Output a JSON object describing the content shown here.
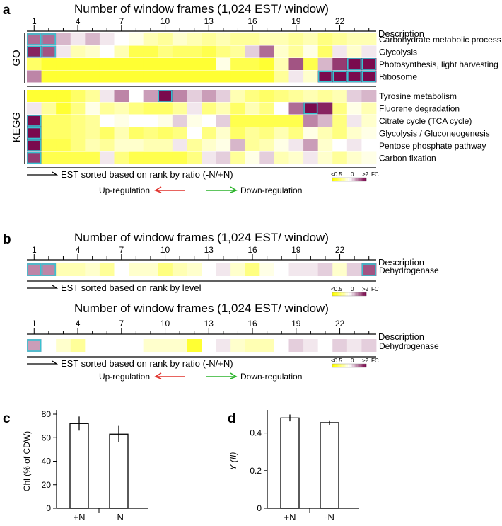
{
  "panels": [
    {
      "letter": "a"
    },
    {
      "letter": "b"
    },
    {
      "letter": "c"
    },
    {
      "letter": "d"
    }
  ],
  "heatmap_title": "Number of window frames (1,024 EST/ window)",
  "description_label": "Description",
  "tick_labels": [
    "1",
    "4",
    "7",
    "10",
    "13",
    "16",
    "19",
    "22"
  ],
  "legend": {
    "low": "<0.5",
    "mid": "0",
    "high": ">2",
    "unit": "FC"
  },
  "regulation": {
    "up": "Up-regulation",
    "down": "Down-regulation"
  },
  "colors": {
    "yellow": "#ffff00",
    "white": "#ffffff",
    "magenta": "#7a0a4e",
    "highlight": "#38c2d0",
    "up_arrow": "#e0302a",
    "down_arrow": "#2bb32b"
  },
  "chart_data": [
    {
      "type": "heatmap",
      "panel": "a",
      "title": "Number of window frames (1,024 EST/ window)",
      "x_ticks": [
        1,
        4,
        7,
        10,
        13,
        16,
        19,
        22
      ],
      "n_columns": 24,
      "value_scale": "fold change, -1 = <0.5 (yellow), 0 = 0 (white), +1 = >2 (dark magenta)",
      "sort_caption": "EST sorted based on rank by ratio (-N/+N)",
      "groups": [
        {
          "name": "GO",
          "rows": [
            {
              "label": "Carbohydrate metabolic process",
              "values": [
                0.6,
                0.6,
                0.3,
                0.1,
                0.3,
                0.1,
                0.0,
                -0.1,
                -0.3,
                -0.4,
                -0.2,
                -0.3,
                -0.4,
                -0.3,
                -0.4,
                -0.4,
                -0.3,
                -0.3,
                -0.4,
                -0.3,
                -0.5,
                -0.4,
                -0.3,
                -0.3
              ]
            },
            {
              "label": "Glycolysis",
              "values": [
                0.9,
                0.7,
                0.1,
                -0.3,
                -0.2,
                0.0,
                -0.3,
                -0.7,
                -0.7,
                -0.5,
                -0.6,
                -0.6,
                -0.7,
                -0.5,
                -0.4,
                0.2,
                0.6,
                -0.2,
                -0.4,
                -0.1,
                -0.6,
                0.1,
                -0.2,
                0.1
              ]
            },
            {
              "label": "Photosynthesis, light harvesting",
              "values": [
                -0.6,
                -0.8,
                -0.8,
                -0.8,
                -0.8,
                -0.8,
                -0.8,
                -0.8,
                -0.8,
                -0.8,
                -0.8,
                -0.8,
                -0.8,
                -0.1,
                -0.7,
                -0.7,
                -0.8,
                -0.3,
                0.7,
                -0.7,
                0.3,
                0.8,
                1.0,
                1.0
              ]
            },
            {
              "label": "Ribosome",
              "values": [
                0.5,
                -0.8,
                -0.8,
                -0.8,
                -0.8,
                -0.8,
                -0.8,
                -0.8,
                -0.8,
                -0.8,
                -0.8,
                -0.8,
                -0.8,
                -0.8,
                -0.8,
                -0.8,
                -0.8,
                -0.4,
                0.1,
                -0.2,
                1.0,
                1.0,
                1.0,
                1.0
              ]
            }
          ]
        },
        {
          "name": "KEGG",
          "rows": [
            {
              "label": "Tyrosine metabolism",
              "values": [
                -0.8,
                -0.8,
                -0.8,
                -0.6,
                -0.4,
                0.1,
                0.5,
                0.0,
                0.4,
                1.0,
                0.5,
                0.2,
                0.4,
                0.2,
                -0.3,
                -0.5,
                -0.6,
                -0.5,
                -0.4,
                -0.3,
                -0.4,
                -0.3,
                0.2,
                0.3
              ]
            },
            {
              "label": "Fluorene degradation",
              "values": [
                0.1,
                -0.4,
                -0.8,
                -0.5,
                -0.1,
                -0.4,
                -0.3,
                -0.5,
                -0.6,
                -0.6,
                -0.4,
                0.1,
                -0.5,
                -0.3,
                -0.6,
                -0.3,
                -0.5,
                0.0,
                0.6,
                1.0,
                0.9,
                -0.5,
                -0.1,
                -0.3
              ]
            },
            {
              "label": "Citrate cycle (TCA cycle)",
              "values": [
                1.0,
                -0.6,
                -0.6,
                -0.5,
                -0.4,
                0.0,
                -0.1,
                0.0,
                0.0,
                -0.1,
                0.2,
                -0.1,
                0.0,
                0.2,
                -0.7,
                -0.7,
                -0.7,
                -0.7,
                -0.7,
                0.5,
                0.3,
                -0.5,
                0.1,
                -0.2
              ]
            },
            {
              "label": "Glycolysis / Gluconeogenesis",
              "values": [
                1.0,
                -0.6,
                -0.6,
                -0.5,
                -0.4,
                -0.6,
                -0.3,
                -0.6,
                -0.5,
                -0.6,
                -0.5,
                0.0,
                -0.5,
                -0.2,
                -0.6,
                -0.4,
                -0.5,
                -0.3,
                -0.5,
                -0.1,
                -0.3,
                -0.5,
                -0.2,
                -0.1
              ]
            },
            {
              "label": "Pentose phosphate pathway",
              "values": [
                1.0,
                -0.7,
                -0.7,
                -0.5,
                -0.3,
                -0.4,
                -0.2,
                -0.2,
                -0.3,
                -0.3,
                0.1,
                -0.4,
                -0.2,
                -0.1,
                0.3,
                -0.4,
                -0.3,
                -0.1,
                0.1,
                0.4,
                -0.2,
                0.0,
                0.1,
                0.0
              ]
            },
            {
              "label": "Carbon fixation",
              "values": [
                0.8,
                -0.7,
                -0.7,
                -0.7,
                -0.7,
                0.1,
                -0.5,
                -0.7,
                -0.7,
                -0.7,
                -0.7,
                -0.5,
                0.1,
                0.2,
                -0.4,
                -0.1,
                0.2,
                -0.3,
                -0.2,
                0.1,
                -0.2,
                -0.4,
                -0.2,
                -0.1
              ]
            }
          ]
        }
      ],
      "highlighted_cells": [
        {
          "row": "Carbohydrate metabolic process",
          "columns": [
            1,
            2
          ]
        },
        {
          "row": "Glycolysis",
          "columns": [
            1,
            2
          ]
        },
        {
          "row": "Photosynthesis, light harvesting",
          "columns": [
            23,
            24
          ]
        },
        {
          "row": "Ribosome",
          "columns": [
            21,
            22,
            23,
            24
          ]
        },
        {
          "row": "Tyrosine metabolism",
          "columns": [
            10
          ]
        },
        {
          "row": "Fluorene degradation",
          "columns": [
            20
          ]
        },
        {
          "row": "Citrate cycle (TCA cycle)",
          "columns": [
            1
          ]
        },
        {
          "row": "Glycolysis / Gluconeogenesis",
          "columns": [
            1
          ]
        },
        {
          "row": "Pentose phosphate pathway",
          "columns": [
            1
          ]
        },
        {
          "row": "Carbon fixation",
          "columns": [
            1
          ]
        }
      ]
    },
    {
      "type": "heatmap",
      "panel": "b-top",
      "title": "Number of window frames (1,024 EST/ window)",
      "x_ticks": [
        1,
        4,
        7,
        10,
        13,
        16,
        19,
        22
      ],
      "n_columns": 24,
      "sort_caption": "EST sorted based on rank by level",
      "rows": [
        {
          "label": "Dehydrogenase",
          "values": [
            0.5,
            0.5,
            -0.3,
            -0.3,
            -0.2,
            -0.4,
            0.0,
            -0.2,
            -0.2,
            -0.5,
            -0.3,
            -0.2,
            0.0,
            0.1,
            -0.2,
            -0.5,
            -0.1,
            0.0,
            0.1,
            0.1,
            0.2,
            -0.2,
            0.2,
            0.7
          ]
        }
      ],
      "highlighted_cells": [
        {
          "row": "Dehydrogenase",
          "columns": [
            1,
            2,
            24
          ]
        }
      ]
    },
    {
      "type": "heatmap",
      "panel": "b-bottom",
      "title": "Number of window frames (1,024 EST/ window)",
      "x_ticks": [
        1,
        4,
        7,
        10,
        13,
        16,
        19,
        22
      ],
      "n_columns": 24,
      "sort_caption": "EST sorted based on rank by ratio (-N/+N)",
      "rows": [
        {
          "label": "Dehydrogenase",
          "values": [
            0.4,
            0.0,
            -0.2,
            -0.4,
            0.0,
            0.0,
            0.0,
            0.0,
            -0.2,
            -0.2,
            -0.2,
            -0.8,
            0.0,
            0.1,
            -0.2,
            -0.3,
            -0.3,
            0.0,
            0.2,
            0.1,
            0.0,
            0.2,
            0.1,
            0.2
          ]
        }
      ],
      "highlighted_cells": [
        {
          "row": "Dehydrogenase",
          "columns": [
            1
          ]
        }
      ]
    },
    {
      "type": "bar",
      "panel": "c",
      "categories": [
        "+N",
        "-N"
      ],
      "values": [
        72,
        63
      ],
      "errors": [
        6,
        7
      ],
      "ylabel": "Chl (% of CDW)",
      "ylim": [
        0,
        80
      ],
      "yticks": [
        0,
        20,
        40,
        60,
        80
      ]
    },
    {
      "type": "bar",
      "panel": "d",
      "categories": [
        "+N",
        "-N"
      ],
      "values": [
        0.48,
        0.455
      ],
      "errors": [
        0.018,
        0.012
      ],
      "ylabel": "Y (II)",
      "ylim": [
        0,
        0.5
      ],
      "yticks": [
        0,
        0.2,
        0.4
      ]
    }
  ]
}
